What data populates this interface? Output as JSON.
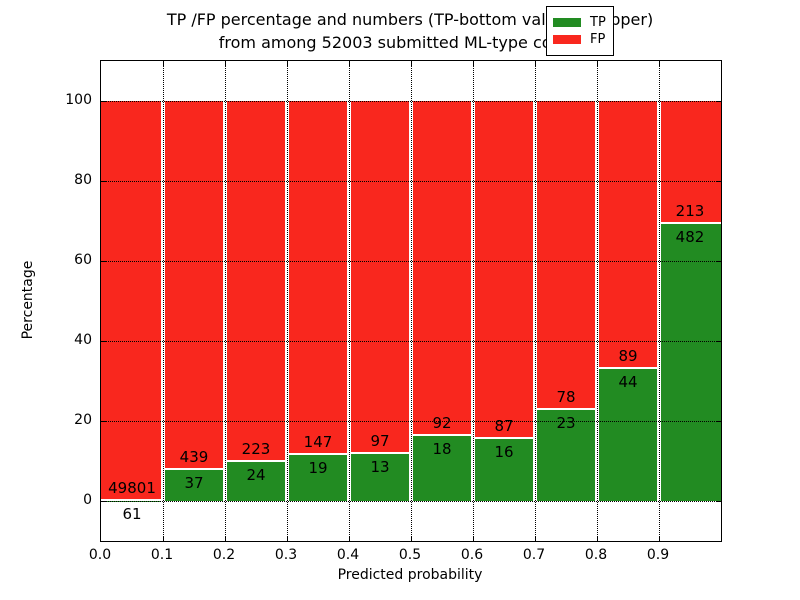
{
  "chart_data": {
    "type": "bar",
    "stacked": true,
    "normalized_to_percent": true,
    "title_lines": [
      "TP /FP percentage and numbers (TP-bottom value, FP-upper)",
      "from among 52003 submitted ML-type contacts"
    ],
    "xlabel": "Predicted probability",
    "ylabel": "Percentage",
    "xlim": [
      0.0,
      1.0
    ],
    "ylim": [
      -10,
      110
    ],
    "bin_edges": [
      0.0,
      0.1,
      0.2,
      0.3,
      0.4,
      0.5,
      0.6,
      0.7,
      0.8,
      0.9,
      1.0
    ],
    "x_tick_labels": [
      "0.0",
      "0.1",
      "0.2",
      "0.3",
      "0.4",
      "0.5",
      "0.6",
      "0.7",
      "0.8",
      "0.9"
    ],
    "y_tick_values": [
      0,
      20,
      40,
      60,
      80,
      100
    ],
    "y_tick_labels": [
      "0",
      "20",
      "40",
      "60",
      "80",
      "100"
    ],
    "grid_style": "dotted",
    "series": [
      {
        "name": "TP",
        "color": "#228b22",
        "stack_position": "bottom",
        "counts": [
          61,
          37,
          24,
          19,
          13,
          18,
          16,
          23,
          44,
          482
        ]
      },
      {
        "name": "FP",
        "color": "#f9271e",
        "stack_position": "top",
        "counts": [
          49801,
          439,
          223,
          147,
          97,
          92,
          87,
          78,
          89,
          213
        ]
      }
    ],
    "tp_percent_by_bin": [
      0.12,
      7.77,
      9.72,
      11.45,
      11.82,
      16.36,
      15.53,
      22.77,
      33.08,
      69.35
    ],
    "legend": {
      "position": "upper right",
      "entries": [
        "TP",
        "FP"
      ]
    }
  }
}
